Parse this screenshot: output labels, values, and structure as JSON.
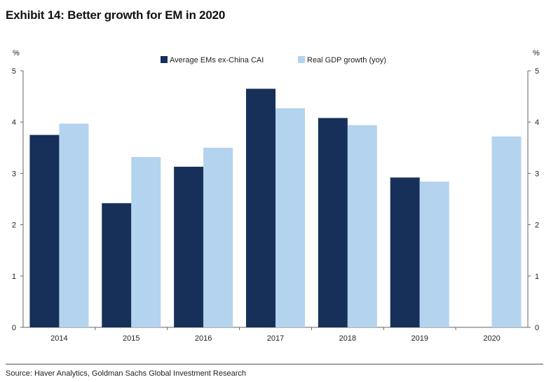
{
  "title": "Exhibit 14: Better growth for EM in 2020",
  "source": "Source: Haver Analytics, Goldman Sachs Global Investment Research",
  "chart_data": {
    "type": "bar",
    "categories": [
      "2014",
      "2015",
      "2016",
      "2017",
      "2018",
      "2019",
      "2020"
    ],
    "series": [
      {
        "name": "Average EMs ex-China CAI",
        "color": "#17305a",
        "values": [
          3.75,
          2.42,
          3.13,
          4.65,
          4.08,
          2.92,
          null
        ]
      },
      {
        "name": "Real GDP growth (yoy)",
        "color": "#b3d3ee",
        "values": [
          3.97,
          3.32,
          3.5,
          4.27,
          3.94,
          2.84,
          3.72
        ]
      }
    ],
    "ylabel_left": "%",
    "ylabel_right": "%",
    "ylim": [
      0,
      5
    ],
    "yticks": [
      "0",
      "1",
      "2",
      "3",
      "4",
      "5"
    ],
    "grid": false,
    "legend_position": "top-center"
  }
}
